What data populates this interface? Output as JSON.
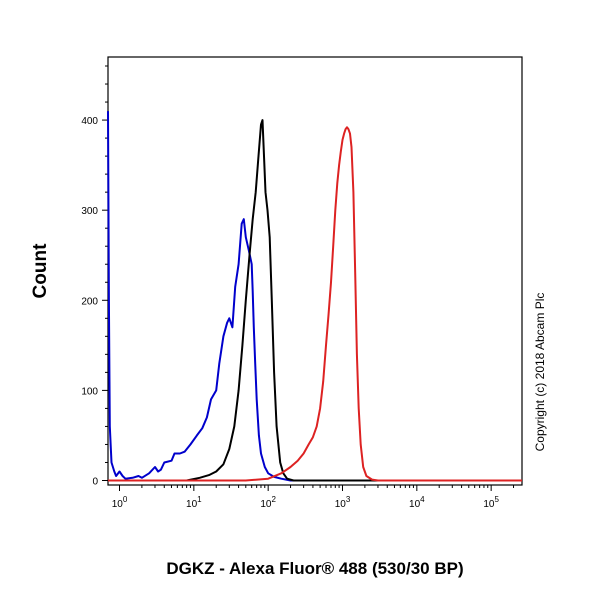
{
  "chart_data": {
    "type": "line",
    "xlabel": "DGKZ - Alexa Fluor® 488 (530/30 BP)",
    "ylabel": "Count",
    "x_scale": "log",
    "xlim": [
      0.7,
      260000
    ],
    "ylim": [
      -5,
      470
    ],
    "x_ticks": [
      {
        "value": 1,
        "base": "10",
        "exp": "0"
      },
      {
        "value": 10,
        "base": "10",
        "exp": "1"
      },
      {
        "value": 100,
        "base": "10",
        "exp": "2"
      },
      {
        "value": 1000,
        "base": "10",
        "exp": "3"
      },
      {
        "value": 10000,
        "base": "10",
        "exp": "4"
      },
      {
        "value": 100000,
        "base": "10",
        "exp": "5"
      }
    ],
    "y_ticks": [
      0,
      100,
      200,
      300,
      400
    ],
    "copyright": "Copyright (c) 2018 Abcam Plc",
    "series": [
      {
        "color": "#0000cc",
        "points": [
          [
            0.7,
            410
          ],
          [
            0.72,
            200
          ],
          [
            0.74,
            60
          ],
          [
            0.78,
            20
          ],
          [
            0.85,
            10
          ],
          [
            0.9,
            5
          ],
          [
            1.0,
            10
          ],
          [
            1.1,
            5
          ],
          [
            1.2,
            2
          ],
          [
            1.5,
            3
          ],
          [
            1.8,
            5
          ],
          [
            2.0,
            3
          ],
          [
            2.5,
            8
          ],
          [
            3.0,
            15
          ],
          [
            3.3,
            10
          ],
          [
            3.6,
            12
          ],
          [
            4.0,
            20
          ],
          [
            5.0,
            22
          ],
          [
            5.5,
            30
          ],
          [
            6.5,
            30
          ],
          [
            7.5,
            32
          ],
          [
            9,
            40
          ],
          [
            11,
            50
          ],
          [
            13,
            58
          ],
          [
            15,
            70
          ],
          [
            17,
            90
          ],
          [
            20,
            100
          ],
          [
            22,
            130
          ],
          [
            25,
            160
          ],
          [
            28,
            175
          ],
          [
            30,
            180
          ],
          [
            33,
            170
          ],
          [
            36,
            215
          ],
          [
            40,
            240
          ],
          [
            44,
            285
          ],
          [
            47,
            290
          ],
          [
            50,
            270
          ],
          [
            55,
            255
          ],
          [
            60,
            240
          ],
          [
            62,
            210
          ],
          [
            64,
            170
          ],
          [
            67,
            130
          ],
          [
            70,
            90
          ],
          [
            75,
            50
          ],
          [
            80,
            30
          ],
          [
            90,
            15
          ],
          [
            100,
            8
          ],
          [
            120,
            4
          ],
          [
            150,
            2
          ],
          [
            200,
            0
          ],
          [
            1000,
            0
          ],
          [
            260000,
            0
          ]
        ]
      },
      {
        "color": "#000000",
        "points": [
          [
            0.7,
            0
          ],
          [
            8,
            0
          ],
          [
            12,
            3
          ],
          [
            16,
            6
          ],
          [
            20,
            10
          ],
          [
            25,
            18
          ],
          [
            30,
            35
          ],
          [
            35,
            60
          ],
          [
            40,
            100
          ],
          [
            45,
            150
          ],
          [
            50,
            200
          ],
          [
            56,
            250
          ],
          [
            62,
            290
          ],
          [
            68,
            320
          ],
          [
            74,
            360
          ],
          [
            80,
            395
          ],
          [
            84,
            400
          ],
          [
            88,
            360
          ],
          [
            92,
            320
          ],
          [
            98,
            300
          ],
          [
            105,
            270
          ],
          [
            112,
            200
          ],
          [
            120,
            120
          ],
          [
            130,
            60
          ],
          [
            145,
            20
          ],
          [
            160,
            8
          ],
          [
            180,
            2
          ],
          [
            220,
            0
          ],
          [
            260000,
            0
          ]
        ]
      },
      {
        "color": "#dd2222",
        "points": [
          [
            0.7,
            0
          ],
          [
            50,
            0
          ],
          [
            100,
            2
          ],
          [
            150,
            8
          ],
          [
            200,
            15
          ],
          [
            250,
            22
          ],
          [
            300,
            30
          ],
          [
            350,
            40
          ],
          [
            400,
            48
          ],
          [
            450,
            60
          ],
          [
            500,
            80
          ],
          [
            550,
            110
          ],
          [
            600,
            150
          ],
          [
            650,
            185
          ],
          [
            700,
            220
          ],
          [
            750,
            260
          ],
          [
            800,
            300
          ],
          [
            850,
            330
          ],
          [
            900,
            350
          ],
          [
            950,
            365
          ],
          [
            1000,
            378
          ],
          [
            1050,
            385
          ],
          [
            1100,
            390
          ],
          [
            1150,
            392
          ],
          [
            1200,
            390
          ],
          [
            1260,
            385
          ],
          [
            1320,
            370
          ],
          [
            1400,
            320
          ],
          [
            1480,
            230
          ],
          [
            1560,
            140
          ],
          [
            1650,
            80
          ],
          [
            1760,
            40
          ],
          [
            1900,
            15
          ],
          [
            2100,
            5
          ],
          [
            2500,
            1
          ],
          [
            3000,
            0
          ],
          [
            260000,
            0
          ]
        ]
      }
    ]
  }
}
